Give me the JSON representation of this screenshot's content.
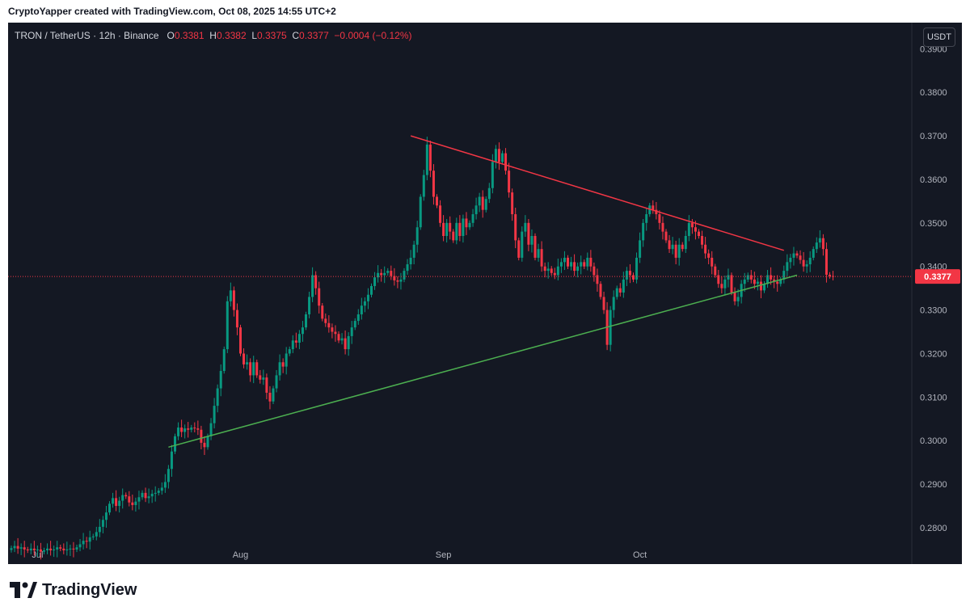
{
  "header": {
    "credit": "CryptoYapper created with TradingView.com, Oct 08, 2025 14:55 UTC+2"
  },
  "legend": {
    "symbol": "TRON / TetherUS · 12h · Binance",
    "o_label": "O",
    "o": "0.3381",
    "h_label": "H",
    "h": "0.3382",
    "l_label": "L",
    "l": "0.3375",
    "c_label": "C",
    "c": "0.3377",
    "change": "−0.0004 (−0.12%)"
  },
  "currency_button": "USDT",
  "footer": {
    "brand": "TradingView"
  },
  "colors": {
    "background": "#141823",
    "up": "#089981",
    "down": "#f23645",
    "resistance": "#f23645",
    "support": "#4caf50"
  },
  "chart_data": {
    "type": "candlestick",
    "ylim": [
      0.2735,
      0.396
    ],
    "y_ticks": [
      "0.2800",
      "0.2900",
      "0.3000",
      "0.3100",
      "0.3200",
      "0.3300",
      "0.3400",
      "0.3500",
      "0.3600",
      "0.3700",
      "0.3800",
      "0.3900"
    ],
    "x_ticks": [
      {
        "label": "Jul",
        "x": 8
      },
      {
        "label": "Aug",
        "x": 70
      },
      {
        "label": "Sep",
        "x": 132
      },
      {
        "label": "Oct",
        "x": 192
      }
    ],
    "last_price": "0.3377",
    "trendlines": [
      {
        "name": "resistance",
        "x1": 122,
        "y1": 0.37,
        "x2": 236,
        "y2": 0.3437
      },
      {
        "name": "support",
        "x1": 48,
        "y1": 0.2985,
        "x2": 240,
        "y2": 0.338
      }
    ],
    "close_values": [
      0.2753,
      0.2758,
      0.2752,
      0.2755,
      0.275,
      0.2748,
      0.2752,
      0.2748,
      0.275,
      0.2745,
      0.2748,
      0.2752,
      0.2748,
      0.275,
      0.2755,
      0.2752,
      0.2748,
      0.275,
      0.2752,
      0.275,
      0.2755,
      0.2762,
      0.277,
      0.2768,
      0.2778,
      0.278,
      0.279,
      0.2802,
      0.2818,
      0.2835,
      0.2855,
      0.2868,
      0.285,
      0.2862,
      0.2875,
      0.2872,
      0.2858,
      0.2852,
      0.286,
      0.287,
      0.288,
      0.2868,
      0.2872,
      0.2878,
      0.288,
      0.2885,
      0.2892,
      0.2905,
      0.2935,
      0.2975,
      0.301,
      0.303,
      0.302,
      0.3028,
      0.3025,
      0.303,
      0.3028,
      0.3025,
      0.2995,
      0.2985,
      0.301,
      0.304,
      0.308,
      0.312,
      0.316,
      0.321,
      0.332,
      0.3345,
      0.33,
      0.326,
      0.32,
      0.3175,
      0.318,
      0.315,
      0.318,
      0.315,
      0.314,
      0.3145,
      0.311,
      0.309,
      0.312,
      0.315,
      0.318,
      0.317,
      0.32,
      0.321,
      0.323,
      0.3225,
      0.3245,
      0.326,
      0.329,
      0.333,
      0.338,
      0.335,
      0.331,
      0.328,
      0.327,
      0.326,
      0.325,
      0.3245,
      0.323,
      0.3235,
      0.321,
      0.324,
      0.326,
      0.3275,
      0.329,
      0.331,
      0.332,
      0.3335,
      0.3355,
      0.3375,
      0.3385,
      0.338,
      0.3385,
      0.339,
      0.3378,
      0.3368,
      0.3365,
      0.337,
      0.339,
      0.3405,
      0.342,
      0.345,
      0.349,
      0.356,
      0.361,
      0.368,
      0.362,
      0.356,
      0.354,
      0.35,
      0.347,
      0.35,
      0.348,
      0.346,
      0.35,
      0.347,
      0.351,
      0.349,
      0.35,
      0.352,
      0.354,
      0.356,
      0.353,
      0.3555,
      0.358,
      0.364,
      0.367,
      0.364,
      0.366,
      0.362,
      0.357,
      0.352,
      0.346,
      0.342,
      0.348,
      0.35,
      0.345,
      0.347,
      0.342,
      0.344,
      0.34,
      0.339,
      0.3395,
      0.3385,
      0.338,
      0.34,
      0.341,
      0.342,
      0.34,
      0.341,
      0.339,
      0.34,
      0.341,
      0.34,
      0.342,
      0.34,
      0.338,
      0.336,
      0.333,
      0.33,
      0.322,
      0.33,
      0.333,
      0.335,
      0.334,
      0.337,
      0.339,
      0.338,
      0.337,
      0.342,
      0.346,
      0.35,
      0.352,
      0.354,
      0.353,
      0.352,
      0.35,
      0.348,
      0.346,
      0.344,
      0.345,
      0.342,
      0.345,
      0.344,
      0.347,
      0.35,
      0.349,
      0.348,
      0.347,
      0.345,
      0.343,
      0.342,
      0.34,
      0.338,
      0.336,
      0.335,
      0.337,
      0.338,
      0.334,
      0.332,
      0.333,
      0.336,
      0.337,
      0.338,
      0.337,
      0.336,
      0.3365,
      0.3345,
      0.336,
      0.338,
      0.337,
      0.3365,
      0.336,
      0.337,
      0.339,
      0.341,
      0.342,
      0.343,
      0.3425,
      0.3415,
      0.34,
      0.3405,
      0.342,
      0.344,
      0.3455,
      0.3465,
      0.344,
      0.3381,
      0.3378,
      0.3377
    ]
  }
}
